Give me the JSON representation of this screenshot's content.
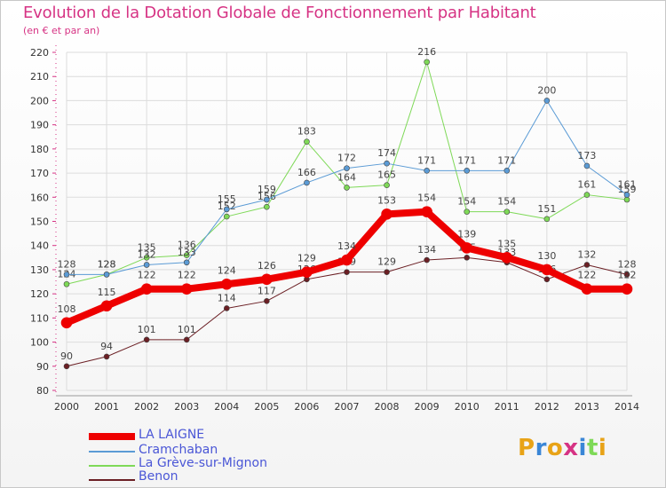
{
  "title": "Evolution de la Dotation Globale de Fonctionnement par Habitant",
  "subtitle": "(en € et par an)",
  "logo": "Proxiti",
  "colors": {
    "title": "#d63384",
    "legend_text": "#4a56d6"
  },
  "chart_data": {
    "type": "line",
    "x": [
      2000,
      2001,
      2002,
      2003,
      2004,
      2005,
      2006,
      2007,
      2008,
      2009,
      2010,
      2011,
      2012,
      2013,
      2014
    ],
    "ylim": [
      80,
      220
    ],
    "yticks": [
      80,
      90,
      100,
      110,
      120,
      130,
      140,
      150,
      160,
      170,
      180,
      190,
      200,
      210,
      220
    ],
    "grid": true,
    "legend_position": "bottom-left",
    "series": [
      {
        "name": "Benon",
        "color": "#6b1f24",
        "width": 1,
        "values": [
          90,
          94,
          101,
          101,
          114,
          117,
          126,
          129,
          129,
          134,
          135,
          133,
          126,
          132,
          128
        ],
        "labels": [
          "90",
          "94",
          "101",
          "101",
          "114",
          "117",
          "126",
          "129",
          "129",
          "134",
          "135",
          "133",
          "126",
          "132",
          "128"
        ]
      },
      {
        "name": "La Grève-sur-Mignon",
        "color": "#7ed957",
        "width": 1,
        "values": [
          124,
          128,
          135,
          136,
          152,
          156,
          183,
          164,
          165,
          216,
          154,
          154,
          151,
          161,
          159
        ],
        "labels": [
          "124",
          "128",
          "135",
          "136",
          "152",
          "156",
          "183",
          "164",
          "165",
          "216",
          "154",
          "154",
          "151",
          "161",
          "159"
        ]
      },
      {
        "name": "Cramchaban",
        "color": "#5b9bd5",
        "width": 1,
        "values": [
          128,
          128,
          132,
          133,
          155,
          159,
          166,
          172,
          174,
          171,
          171,
          171,
          200,
          173,
          161
        ],
        "labels": [
          "128",
          "128",
          "132",
          "133",
          "155",
          "159",
          "166",
          "172",
          "174",
          "171",
          "171",
          "171",
          "200",
          "173",
          "161"
        ]
      },
      {
        "name": "LA LAIGNE",
        "color": "#ee0000",
        "width": 8,
        "values": [
          108,
          115,
          122,
          122,
          124,
          126,
          129,
          134,
          153,
          154,
          139,
          135,
          130,
          122,
          122
        ],
        "labels": [
          "108",
          "115",
          "122",
          "122",
          "124",
          "126",
          "129",
          "134",
          "153",
          "154",
          "139",
          "135",
          "130",
          "122",
          "122"
        ]
      }
    ]
  }
}
